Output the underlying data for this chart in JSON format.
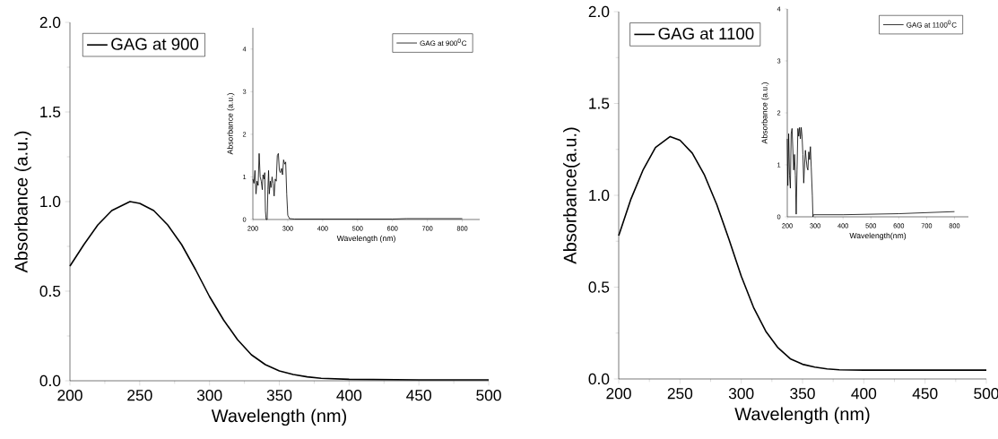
{
  "chart_data": [
    {
      "type": "line",
      "xlabel": "Wavelength (nm)",
      "ylabel": "Absorbance (a.u.)",
      "legend": "top left",
      "xlim": [
        200,
        500
      ],
      "ylim": [
        0,
        2.0
      ],
      "xticks": [
        200,
        250,
        300,
        350,
        400,
        450,
        500
      ],
      "yticks": [
        {
          "value": 0,
          "label": "0.0"
        },
        {
          "value": 0.5,
          "label": "0.5"
        },
        {
          "value": 1.0,
          "label": "1.0"
        },
        {
          "value": 1.5,
          "label": "1.5"
        },
        {
          "value": 2.0,
          "label": "2.0"
        }
      ],
      "x": [
        200,
        210,
        220,
        230,
        243,
        250,
        260,
        270,
        280,
        290,
        300,
        310,
        320,
        330,
        340,
        350,
        360,
        370,
        380,
        400,
        450,
        500
      ],
      "series": [
        {
          "name": "GAG at 900",
          "color": "#000000",
          "values": [
            0.64,
            0.76,
            0.87,
            0.95,
            1.0,
            0.99,
            0.95,
            0.87,
            0.76,
            0.62,
            0.47,
            0.34,
            0.23,
            0.145,
            0.09,
            0.055,
            0.035,
            0.022,
            0.014,
            0.008,
            0.005,
            0.005
          ]
        }
      ]
    },
    {
      "type": "line",
      "xlabel": "Wavelength (nm)",
      "ylabel": "Absorbance (a.u.)",
      "legend": "top right",
      "xlim": [
        200,
        850
      ],
      "ylim": [
        0,
        4.5
      ],
      "xticks": [
        200,
        300,
        400,
        500,
        600,
        700,
        800
      ],
      "yticks": [
        0,
        1,
        2,
        3,
        4
      ],
      "x": [
        200,
        203,
        206,
        209,
        212,
        215,
        218,
        221,
        224,
        227,
        229,
        232,
        234,
        236,
        238,
        241,
        243,
        245,
        247,
        250,
        252,
        255,
        258,
        261,
        264,
        267,
        270,
        273,
        276,
        279,
        282,
        285,
        288,
        291,
        294,
        297,
        300,
        305,
        320,
        600,
        640,
        800
      ],
      "series": [
        {
          "name": "GAG at 900$^{0}$C",
          "color": "#000000",
          "values": [
            0.95,
            0.85,
            1.15,
            0.6,
            0.9,
            0.8,
            1.55,
            1.0,
            0.9,
            0.7,
            1.05,
            0.95,
            1.1,
            0.2,
            0,
            0,
            0.7,
            1.15,
            0.6,
            0.9,
            0.75,
            1.0,
            0.85,
            0.55,
            0.95,
            0.9,
            1.5,
            1.55,
            1.15,
            1.1,
            1.2,
            1.05,
            1.4,
            1.3,
            1.35,
            0.6,
            0.1,
            0.02,
            0.01,
            0.01,
            0.02,
            0.02
          ]
        }
      ]
    },
    {
      "type": "line",
      "xlabel": "Wavelength (nm)",
      "ylabel": "Absorbance(a.u.)",
      "legend": "top left",
      "xlim": [
        200,
        500
      ],
      "ylim": [
        0,
        2.0
      ],
      "xticks": [
        200,
        250,
        300,
        350,
        400,
        450,
        500
      ],
      "yticks": [
        {
          "value": 0,
          "label": "0.0"
        },
        {
          "value": 0.5,
          "label": "0.5"
        },
        {
          "value": 1.0,
          "label": "1.0"
        },
        {
          "value": 1.5,
          "label": "1.5"
        },
        {
          "value": 2.0,
          "label": "2.0"
        }
      ],
      "x": [
        200,
        210,
        220,
        230,
        242,
        250,
        260,
        270,
        280,
        290,
        300,
        310,
        320,
        330,
        340,
        350,
        360,
        370,
        380,
        400,
        500
      ],
      "series": [
        {
          "name": "GAG at 1100",
          "color": "#000000",
          "values": [
            0.78,
            0.98,
            1.14,
            1.26,
            1.32,
            1.3,
            1.23,
            1.11,
            0.95,
            0.76,
            0.56,
            0.39,
            0.26,
            0.17,
            0.11,
            0.08,
            0.065,
            0.055,
            0.05,
            0.048,
            0.048
          ]
        }
      ]
    },
    {
      "type": "line",
      "xlabel": "Wavelength(nm)",
      "ylabel": "Absorbance (a.u.)",
      "legend": "top right",
      "xlim": [
        200,
        850
      ],
      "ylim": [
        0,
        4
      ],
      "xticks": [
        200,
        300,
        400,
        500,
        600,
        700,
        800
      ],
      "yticks": [
        0,
        1,
        2,
        3,
        4
      ],
      "x": [
        200,
        202,
        205,
        208,
        211,
        214,
        217,
        220,
        223,
        226,
        229,
        232,
        235,
        238,
        241,
        244,
        247,
        250,
        253,
        256,
        259,
        262,
        265,
        268,
        271,
        274,
        277,
        280,
        283,
        286,
        290,
        292,
        294,
        300,
        400,
        500,
        600,
        700,
        800
      ],
      "series": [
        {
          "name": "GAG at 1100$^{0}$C",
          "color": "#000000",
          "values": [
            1.5,
            0.6,
            1.6,
            0.8,
            0.55,
            1.6,
            1.7,
            1.3,
            0.9,
            1.2,
            0.8,
            0.05,
            0.9,
            1.7,
            1.55,
            1.72,
            1.5,
            1.72,
            1.55,
            1.2,
            0.65,
            1.0,
            1.28,
            1.1,
            0.95,
            0.9,
            1.25,
            1.1,
            1.35,
            0.95,
            0.4,
            0.0,
            0.04,
            0.04,
            0.04,
            0.05,
            0.06,
            0.08,
            0.1
          ]
        }
      ]
    }
  ]
}
